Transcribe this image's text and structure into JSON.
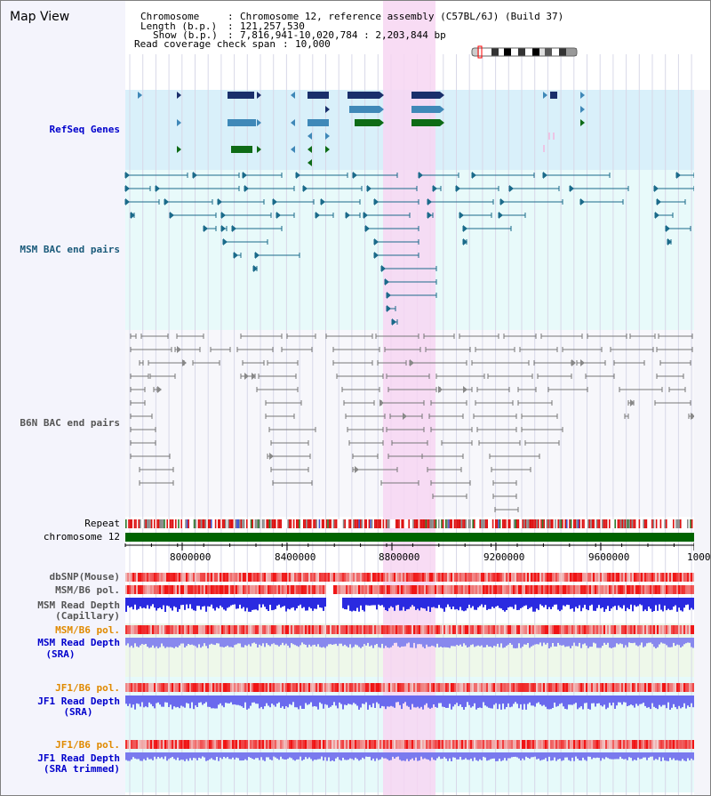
{
  "header": {
    "title": "Map View",
    "chromosome_key": "Chromosome",
    "chromosome_value": "Chromosome 12, reference assembly (C57BL/6J) (Build 37)",
    "length_key": "Length (b.p.)",
    "length_value": "121,257,530",
    "show_key": "Show (b.p.)",
    "show_value": "7,816,941-10,020,784 : 2,203,844 bp",
    "coverage_key": "Read coverage check span",
    "coverage_value": "10,000"
  },
  "tracks": {
    "refseq": "RefSeq Genes",
    "msm_bac": "MSM BAC end pairs",
    "b6n_bac": "B6N BAC end pairs",
    "repeat": "Repeat",
    "chromosome": "chromosome 12",
    "dbsnp": "dbSNP(Mouse)",
    "msm_b6_pol_1": "MSM/B6 pol.",
    "msm_read_depth_cap_1": "MSM Read Depth",
    "msm_read_depth_cap_2": "(Capillary)",
    "msm_b6_pol_2": "MSM/B6 pol.",
    "msm_read_depth_sra_1": "MSM Read Depth",
    "msm_read_depth_sra_2": "(SRA)",
    "jf1_b6_pol_1": "JF1/B6 pol.",
    "jf1_read_depth_sra_1": "JF1 Read Depth",
    "jf1_read_depth_sra_2": "(SRA)",
    "jf1_b6_pol_2": "JF1/B6 pol.",
    "jf1_read_depth_trim_1": "JF1 Read Depth",
    "jf1_read_depth_trim_2": "(SRA trimmed)"
  },
  "axis": {
    "ticks": [
      "8000000",
      "8400000",
      "8800000",
      "9200000",
      "9600000",
      "1000"
    ]
  },
  "colors": {
    "refseq_bg": "#d9f0fa",
    "msm_bg": "#e8fafa",
    "highlight": "#f7d6f2",
    "chromosome_bar": "#006400",
    "repeat_red": "#dd1111",
    "msm_label": "#1a5a7a",
    "orange_label": "#e08a00",
    "blue_label": "#0000cc"
  }
}
